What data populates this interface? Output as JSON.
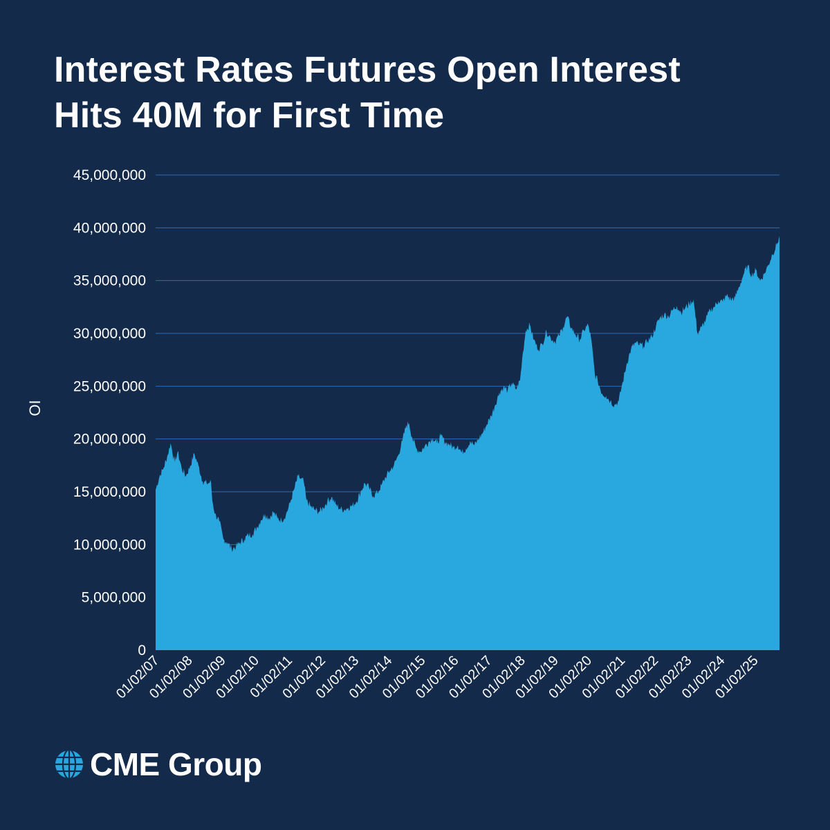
{
  "title_line1": "Interest Rates Futures Open Interest",
  "title_line2": "Hits 40M for First Time",
  "brand": {
    "name": "CME Group",
    "logo_icon": "globe-icon"
  },
  "colors": {
    "background": "#142a4a",
    "area": "#29a8e0",
    "grid": "#2b6cb3"
  },
  "chart_data": {
    "type": "area",
    "title": "Interest Rates Futures Open Interest Hits 40M for First Time",
    "xlabel": "",
    "ylabel": "OI",
    "ylim": [
      0,
      45000000
    ],
    "xlim": [
      "2007-01-02",
      "2025-10-01"
    ],
    "grid": true,
    "legend": "none",
    "y_ticks": [
      0,
      5000000,
      10000000,
      15000000,
      20000000,
      25000000,
      30000000,
      35000000,
      40000000,
      45000000
    ],
    "y_tick_labels": [
      "0",
      "5,000,000",
      "10,000,000",
      "15,000,000",
      "20,000,000",
      "25,000,000",
      "30,000,000",
      "35,000,000",
      "40,000,000",
      "45,000,000"
    ],
    "x_ticks": [
      "2007-01-02",
      "2008-01-02",
      "2009-01-02",
      "2010-01-02",
      "2011-01-02",
      "2012-01-02",
      "2013-01-02",
      "2014-01-02",
      "2015-01-02",
      "2016-01-02",
      "2017-01-02",
      "2018-01-02",
      "2019-01-02",
      "2020-01-02",
      "2021-01-02",
      "2022-01-02",
      "2023-01-02",
      "2024-01-02",
      "2025-01-02"
    ],
    "x_tick_labels": [
      "01/02/07",
      "01/02/08",
      "01/02/09",
      "01/02/10",
      "01/02/11",
      "01/02/12",
      "01/02/13",
      "01/02/14",
      "01/02/15",
      "01/02/16",
      "01/02/17",
      "01/02/18",
      "01/02/19",
      "01/02/20",
      "01/02/21",
      "01/02/22",
      "01/02/23",
      "01/02/24",
      "01/02/25"
    ],
    "series": [
      {
        "values": [
          [
            "2007-01-02",
            15200000
          ],
          [
            "2007-02-15",
            16500000
          ],
          [
            "2007-04-01",
            17300000
          ],
          [
            "2007-05-15",
            18500000
          ],
          [
            "2007-06-15",
            19600000
          ],
          [
            "2007-08-01",
            17800000
          ],
          [
            "2007-09-01",
            18800000
          ],
          [
            "2007-10-15",
            17200000
          ],
          [
            "2007-12-01",
            16500000
          ],
          [
            "2008-01-15",
            17400000
          ],
          [
            "2008-03-01",
            18600000
          ],
          [
            "2008-04-15",
            17500000
          ],
          [
            "2008-06-01",
            16000000
          ],
          [
            "2008-07-15",
            15800000
          ],
          [
            "2008-09-01",
            15900000
          ],
          [
            "2008-09-15",
            14200000
          ],
          [
            "2008-10-15",
            12900000
          ],
          [
            "2008-12-01",
            12200000
          ],
          [
            "2009-01-15",
            10500000
          ],
          [
            "2009-03-01",
            10200000
          ],
          [
            "2009-04-15",
            9600000
          ],
          [
            "2009-06-01",
            9800000
          ],
          [
            "2009-07-15",
            10200000
          ],
          [
            "2009-09-01",
            10500000
          ],
          [
            "2009-10-15",
            10900000
          ],
          [
            "2009-12-01",
            11000000
          ],
          [
            "2010-01-15",
            11600000
          ],
          [
            "2010-03-01",
            12300000
          ],
          [
            "2010-04-15",
            12900000
          ],
          [
            "2010-06-01",
            12500000
          ],
          [
            "2010-07-15",
            13100000
          ],
          [
            "2010-09-01",
            12500000
          ],
          [
            "2010-10-15",
            12300000
          ],
          [
            "2010-12-01",
            12800000
          ],
          [
            "2011-01-15",
            13900000
          ],
          [
            "2011-03-01",
            15200000
          ],
          [
            "2011-04-15",
            16500000
          ],
          [
            "2011-05-15",
            16200000
          ],
          [
            "2011-06-15",
            16000000
          ],
          [
            "2011-07-15",
            14200000
          ],
          [
            "2011-09-01",
            13600000
          ],
          [
            "2011-10-15",
            13300000
          ],
          [
            "2011-12-01",
            13100000
          ],
          [
            "2012-01-15",
            13500000
          ],
          [
            "2012-03-01",
            14100000
          ],
          [
            "2012-04-15",
            14500000
          ],
          [
            "2012-06-01",
            13800000
          ],
          [
            "2012-07-15",
            13400000
          ],
          [
            "2012-09-01",
            13300000
          ],
          [
            "2012-10-15",
            13500000
          ],
          [
            "2012-12-01",
            13700000
          ],
          [
            "2013-01-15",
            14100000
          ],
          [
            "2013-03-01",
            15000000
          ],
          [
            "2013-04-15",
            15800000
          ],
          [
            "2013-06-01",
            15400000
          ],
          [
            "2013-07-15",
            14600000
          ],
          [
            "2013-09-01",
            14900000
          ],
          [
            "2013-10-15",
            15600000
          ],
          [
            "2013-12-01",
            16400000
          ],
          [
            "2014-01-15",
            17000000
          ],
          [
            "2014-03-01",
            17500000
          ],
          [
            "2014-04-15",
            18400000
          ],
          [
            "2014-06-01",
            19800000
          ],
          [
            "2014-07-15",
            21300000
          ],
          [
            "2014-08-15",
            21500000
          ],
          [
            "2014-09-15",
            20200000
          ],
          [
            "2014-11-01",
            19100000
          ],
          [
            "2014-12-15",
            18800000
          ],
          [
            "2015-02-01",
            19300000
          ],
          [
            "2015-03-15",
            19700000
          ],
          [
            "2015-05-01",
            20100000
          ],
          [
            "2015-06-15",
            19600000
          ],
          [
            "2015-08-01",
            20300000
          ],
          [
            "2015-09-15",
            19700000
          ],
          [
            "2015-11-01",
            19500000
          ],
          [
            "2015-12-15",
            19200000
          ],
          [
            "2016-02-01",
            19400000
          ],
          [
            "2016-03-15",
            18700000
          ],
          [
            "2016-05-01",
            19100000
          ],
          [
            "2016-06-15",
            19800000
          ],
          [
            "2016-08-01",
            19400000
          ],
          [
            "2016-09-15",
            20000000
          ],
          [
            "2016-11-01",
            20600000
          ],
          [
            "2016-12-15",
            21400000
          ],
          [
            "2017-02-01",
            22200000
          ],
          [
            "2017-03-15",
            23200000
          ],
          [
            "2017-05-01",
            24400000
          ],
          [
            "2017-06-15",
            24900000
          ],
          [
            "2017-08-01",
            24600000
          ],
          [
            "2017-09-15",
            25300000
          ],
          [
            "2017-11-01",
            24700000
          ],
          [
            "2017-12-15",
            25600000
          ],
          [
            "2018-01-15",
            28200000
          ],
          [
            "2018-02-15",
            30300000
          ],
          [
            "2018-04-01",
            30800000
          ],
          [
            "2018-05-15",
            29400000
          ],
          [
            "2018-07-01",
            28500000
          ],
          [
            "2018-08-15",
            29000000
          ],
          [
            "2018-10-01",
            30200000
          ],
          [
            "2018-11-15",
            29600000
          ],
          [
            "2019-01-01",
            29200000
          ],
          [
            "2019-02-15",
            29800000
          ],
          [
            "2019-04-01",
            30600000
          ],
          [
            "2019-05-15",
            31600000
          ],
          [
            "2019-07-01",
            30500000
          ],
          [
            "2019-08-15",
            29900000
          ],
          [
            "2019-10-01",
            29400000
          ],
          [
            "2019-11-15",
            30300000
          ],
          [
            "2020-01-01",
            30800000
          ],
          [
            "2020-02-01",
            29600000
          ],
          [
            "2020-03-15",
            26100000
          ],
          [
            "2020-04-15",
            25500000
          ],
          [
            "2020-06-01",
            24300000
          ],
          [
            "2020-07-15",
            24100000
          ],
          [
            "2020-09-01",
            23600000
          ],
          [
            "2020-10-15",
            23200000
          ],
          [
            "2020-12-01",
            23600000
          ],
          [
            "2021-01-15",
            25400000
          ],
          [
            "2021-03-01",
            27200000
          ],
          [
            "2021-04-15",
            28500000
          ],
          [
            "2021-06-01",
            29100000
          ],
          [
            "2021-07-15",
            28900000
          ],
          [
            "2021-09-01",
            28800000
          ],
          [
            "2021-10-15",
            29300000
          ],
          [
            "2021-12-01",
            29700000
          ],
          [
            "2022-01-15",
            30700000
          ],
          [
            "2022-03-01",
            31500000
          ],
          [
            "2022-04-15",
            31800000
          ],
          [
            "2022-06-01",
            31600000
          ],
          [
            "2022-07-15",
            32200000
          ],
          [
            "2022-09-01",
            32600000
          ],
          [
            "2022-10-15",
            32000000
          ],
          [
            "2022-12-01",
            32400000
          ],
          [
            "2023-01-15",
            32800000
          ],
          [
            "2023-03-01",
            33200000
          ],
          [
            "2023-04-15",
            30000000
          ],
          [
            "2023-06-01",
            30600000
          ],
          [
            "2023-07-15",
            31300000
          ],
          [
            "2023-09-01",
            32200000
          ],
          [
            "2023-10-15",
            32500000
          ],
          [
            "2023-12-01",
            33100000
          ],
          [
            "2024-01-15",
            33000000
          ],
          [
            "2024-03-01",
            33600000
          ],
          [
            "2024-04-15",
            33200000
          ],
          [
            "2024-06-01",
            33400000
          ],
          [
            "2024-07-15",
            34400000
          ],
          [
            "2024-09-01",
            35600000
          ],
          [
            "2024-10-15",
            36400000
          ],
          [
            "2024-12-01",
            35500000
          ],
          [
            "2025-01-15",
            36000000
          ],
          [
            "2025-03-01",
            35000000
          ],
          [
            "2025-04-15",
            35600000
          ],
          [
            "2025-06-01",
            36500000
          ],
          [
            "2025-07-15",
            37500000
          ],
          [
            "2025-09-01",
            38400000
          ],
          [
            "2025-10-01",
            39200000
          ]
        ]
      }
    ]
  }
}
